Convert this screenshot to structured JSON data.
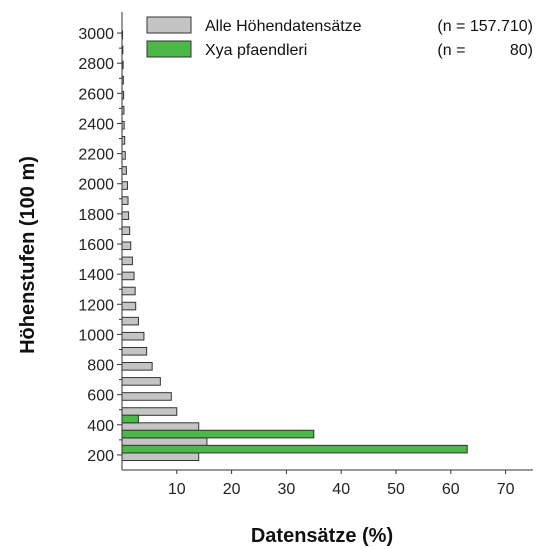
{
  "chart_data": {
    "type": "bar",
    "orientation": "horizontal",
    "xlabel": "Datensätze (%)",
    "ylabel": "Höhenstufen (100 m)",
    "xlim": [
      0,
      75
    ],
    "ylim": [
      100,
      3100
    ],
    "xticks": [
      10,
      20,
      30,
      40,
      50,
      60,
      70
    ],
    "yticks": [
      200,
      400,
      600,
      800,
      1000,
      1200,
      1400,
      1600,
      1800,
      2000,
      2200,
      2400,
      2600,
      2800,
      3000
    ],
    "grid": false,
    "legend_position": "top-right",
    "colors": {
      "alle": "#c4c4c4",
      "xya": "#4cb848"
    },
    "series": [
      {
        "name": "Alle Höhendatensätze",
        "n_label": "(n = 157.710)",
        "x": [
          200,
          300,
          400,
          500,
          600,
          700,
          800,
          900,
          1000,
          1100,
          1200,
          1300,
          1400,
          1500,
          1600,
          1700,
          1800,
          1900,
          2000,
          2100,
          2200,
          2300,
          2400,
          2500,
          2600,
          2700,
          2800,
          2900,
          3000
        ],
        "values": [
          14,
          15.5,
          14,
          10,
          9,
          7,
          5.5,
          4.5,
          4,
          3,
          2.5,
          2.4,
          2.2,
          1.9,
          1.6,
          1.4,
          1.2,
          1.1,
          1.0,
          0.8,
          0.6,
          0.5,
          0.4,
          0.35,
          0.3,
          0.25,
          0.2,
          0.15,
          0.1
        ]
      },
      {
        "name": "Xya pfaendleri",
        "n_label": "(n =          80)",
        "x": [
          200,
          300,
          400
        ],
        "values": [
          63,
          35,
          3
        ]
      }
    ]
  }
}
